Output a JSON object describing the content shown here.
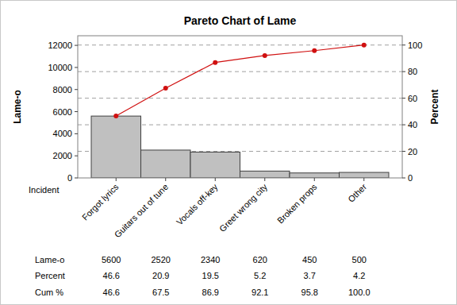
{
  "chart_data": {
    "type": "bar",
    "title": "Pareto Chart of Lame",
    "x_label": "Incident",
    "y_label": "Lame-o",
    "y2_label": "Percent",
    "categories": [
      "Forgot lyrics",
      "Guitars out of tune",
      "Vocals off-key",
      "Greet wrong city",
      "Broken props",
      "Other"
    ],
    "series": [
      {
        "name": "Lame-o",
        "type": "bar",
        "color": "#c0c0c0",
        "values": [
          5600,
          2520,
          2340,
          620,
          450,
          500
        ]
      },
      {
        "name": "Cum %",
        "type": "line",
        "axis": "y2",
        "color": "#d01010",
        "marker": "circle",
        "line_style": "solid",
        "values": [
          46.6,
          67.5,
          86.9,
          92.1,
          95.8,
          100.0
        ]
      }
    ],
    "percent": [
      46.6,
      20.9,
      19.5,
      5.2,
      3.7,
      4.2
    ],
    "ylim": [
      0,
      12870
    ],
    "yticks": [
      0,
      2000,
      4000,
      6000,
      8000,
      10000,
      12000
    ],
    "y2lim": [
      0,
      107
    ],
    "y2ticks": [
      0,
      20,
      40,
      60,
      80,
      100
    ],
    "grid": true
  }
}
